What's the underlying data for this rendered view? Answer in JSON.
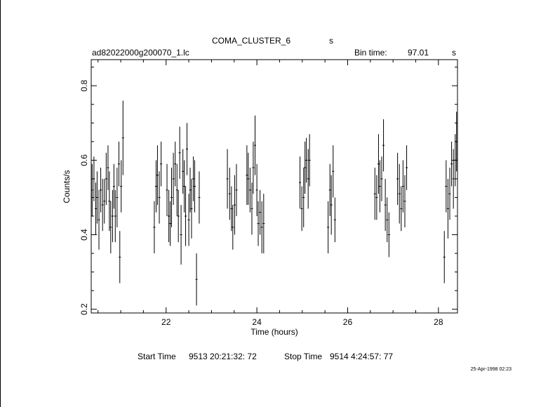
{
  "header": {
    "object": "COMA_CLUSTER_6",
    "object_unit": "s",
    "filename": "ad82022000g200070_1.lc",
    "bin_time_label": "Bin time:",
    "bin_time_value": "97.01",
    "bin_time_unit": "s"
  },
  "footer": {
    "start_label": "Start Time",
    "start_value": "9513 20:21:32: 72",
    "stop_label": "Stop Time",
    "stop_value": "9514  4:24:57: 77",
    "date_stamp": "25-Apr-1998 02:23"
  },
  "chart_data": {
    "type": "scatter",
    "xlabel": "Time (hours)",
    "ylabel": "Counts/s",
    "xlim": [
      20.35,
      28.42
    ],
    "ylim": [
      0.19,
      0.87
    ],
    "xticks": [
      22,
      24,
      26,
      28
    ],
    "xtick_labels": [
      "22",
      "24",
      "26",
      "28"
    ],
    "yticks": [
      0.2,
      0.4,
      0.6,
      0.8
    ],
    "ytick_labels": [
      "0.2",
      "0.4",
      "0.6",
      "0.8"
    ],
    "grid": false,
    "error_bars": true,
    "points": [
      [
        20.37,
        0.52,
        0.07
      ],
      [
        20.41,
        0.55,
        0.06
      ],
      [
        20.45,
        0.47,
        0.07
      ],
      [
        20.48,
        0.5,
        0.07
      ],
      [
        20.52,
        0.44,
        0.08
      ],
      [
        20.56,
        0.52,
        0.06
      ],
      [
        20.6,
        0.48,
        0.07
      ],
      [
        20.64,
        0.49,
        0.06
      ],
      [
        20.68,
        0.55,
        0.07
      ],
      [
        20.72,
        0.58,
        0.06
      ],
      [
        20.75,
        0.49,
        0.08
      ],
      [
        20.78,
        0.42,
        0.07
      ],
      [
        20.82,
        0.45,
        0.07
      ],
      [
        20.85,
        0.53,
        0.06
      ],
      [
        20.88,
        0.45,
        0.07
      ],
      [
        20.92,
        0.5,
        0.08
      ],
      [
        20.96,
        0.59,
        0.06
      ],
      [
        20.98,
        0.34,
        0.07
      ],
      [
        21.01,
        0.53,
        0.07
      ],
      [
        21.05,
        0.66,
        0.1
      ],
      [
        21.74,
        0.42,
        0.07
      ],
      [
        21.78,
        0.53,
        0.07
      ],
      [
        21.81,
        0.56,
        0.08
      ],
      [
        21.85,
        0.5,
        0.07
      ],
      [
        21.89,
        0.59,
        0.06
      ],
      [
        22.02,
        0.52,
        0.07
      ],
      [
        22.06,
        0.45,
        0.07
      ],
      [
        22.09,
        0.43,
        0.06
      ],
      [
        22.12,
        0.5,
        0.08
      ],
      [
        22.16,
        0.55,
        0.07
      ],
      [
        22.2,
        0.59,
        0.06
      ],
      [
        22.24,
        0.52,
        0.07
      ],
      [
        22.27,
        0.45,
        0.07
      ],
      [
        22.3,
        0.62,
        0.07
      ],
      [
        22.33,
        0.4,
        0.08
      ],
      [
        22.37,
        0.57,
        0.06
      ],
      [
        22.4,
        0.53,
        0.07
      ],
      [
        22.43,
        0.45,
        0.08
      ],
      [
        22.46,
        0.63,
        0.07
      ],
      [
        22.5,
        0.44,
        0.07
      ],
      [
        22.53,
        0.52,
        0.06
      ],
      [
        22.56,
        0.47,
        0.08
      ],
      [
        22.6,
        0.55,
        0.06
      ],
      [
        22.63,
        0.53,
        0.07
      ],
      [
        22.67,
        0.28,
        0.07
      ],
      [
        22.73,
        0.5,
        0.07
      ],
      [
        23.35,
        0.55,
        0.08
      ],
      [
        23.4,
        0.51,
        0.07
      ],
      [
        23.44,
        0.47,
        0.06
      ],
      [
        23.47,
        0.42,
        0.06
      ],
      [
        23.51,
        0.48,
        0.08
      ],
      [
        23.55,
        0.52,
        0.07
      ],
      [
        23.78,
        0.56,
        0.08
      ],
      [
        23.81,
        0.55,
        0.07
      ],
      [
        23.85,
        0.52,
        0.06
      ],
      [
        23.89,
        0.47,
        0.07
      ],
      [
        23.92,
        0.58,
        0.07
      ],
      [
        23.96,
        0.64,
        0.08
      ],
      [
        24.0,
        0.52,
        0.07
      ],
      [
        24.03,
        0.43,
        0.06
      ],
      [
        24.07,
        0.46,
        0.06
      ],
      [
        24.11,
        0.42,
        0.07
      ],
      [
        24.15,
        0.43,
        0.08
      ],
      [
        24.95,
        0.54,
        0.07
      ],
      [
        24.99,
        0.47,
        0.06
      ],
      [
        25.03,
        0.5,
        0.08
      ],
      [
        25.06,
        0.58,
        0.07
      ],
      [
        25.09,
        0.6,
        0.06
      ],
      [
        25.13,
        0.55,
        0.08
      ],
      [
        25.16,
        0.6,
        0.07
      ],
      [
        25.57,
        0.42,
        0.07
      ],
      [
        25.61,
        0.52,
        0.07
      ],
      [
        25.64,
        0.48,
        0.08
      ],
      [
        25.68,
        0.57,
        0.07
      ],
      [
        25.72,
        0.44,
        0.06
      ],
      [
        26.6,
        0.51,
        0.07
      ],
      [
        26.64,
        0.5,
        0.06
      ],
      [
        26.68,
        0.59,
        0.08
      ],
      [
        26.71,
        0.53,
        0.07
      ],
      [
        26.75,
        0.55,
        0.06
      ],
      [
        26.79,
        0.64,
        0.07
      ],
      [
        26.83,
        0.48,
        0.07
      ],
      [
        26.87,
        0.44,
        0.06
      ],
      [
        26.91,
        0.4,
        0.06
      ],
      [
        27.1,
        0.55,
        0.07
      ],
      [
        27.14,
        0.51,
        0.08
      ],
      [
        27.18,
        0.47,
        0.06
      ],
      [
        27.22,
        0.53,
        0.07
      ],
      [
        27.26,
        0.49,
        0.07
      ],
      [
        27.3,
        0.58,
        0.06
      ],
      [
        28.13,
        0.34,
        0.07
      ],
      [
        28.17,
        0.53,
        0.07
      ],
      [
        28.21,
        0.47,
        0.08
      ],
      [
        28.25,
        0.51,
        0.07
      ],
      [
        28.29,
        0.59,
        0.06
      ],
      [
        28.33,
        0.55,
        0.08
      ],
      [
        28.37,
        0.6,
        0.07
      ],
      [
        28.4,
        0.65,
        0.08
      ]
    ]
  }
}
